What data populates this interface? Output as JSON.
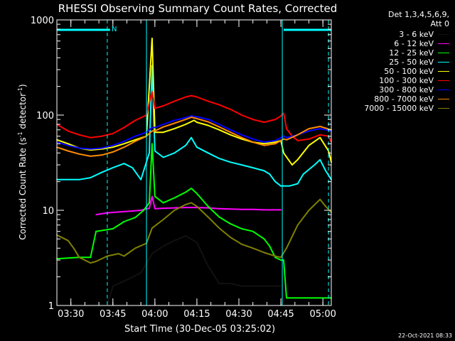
{
  "chart_data": {
    "type": "line",
    "title": "RHESSI Observing Summary Count Rates, Corrected",
    "xlabel": "Start Time (30-Dec-05 03:25:02)",
    "ylabel_main": "Corrected Count Rate (s",
    "ylabel_sup1": "-1",
    "ylabel_mid": " detector",
    "ylabel_sup2": "-1",
    "ylabel_end": ")",
    "yscale": "log",
    "ylim": [
      1,
      1000
    ],
    "xlim_minutes": [
      0,
      98
    ],
    "x_ticks": [
      {
        "label": "03:30",
        "minute": 5
      },
      {
        "label": "03:45",
        "minute": 20
      },
      {
        "label": "04:00",
        "minute": 35
      },
      {
        "label": "04:15",
        "minute": 50
      },
      {
        "label": "04:30",
        "minute": 65
      },
      {
        "label": "04:45",
        "minute": 80
      },
      {
        "label": "05:00",
        "minute": 95
      }
    ],
    "y_ticks": [
      {
        "label": "1",
        "value": 1
      },
      {
        "label": "10",
        "value": 10
      },
      {
        "label": "100",
        "value": 100
      },
      {
        "label": "1000",
        "value": 1000
      }
    ],
    "legend_header": "Det 1,3,4,5,6,9,",
    "legend_att": "Att 0",
    "annotation_n": "N",
    "series": [
      {
        "name": "3 - 6 keV",
        "color": "#000000",
        "points": [
          [
            18,
            1
          ],
          [
            20,
            1.6
          ],
          [
            24,
            1.8
          ],
          [
            30,
            2.2
          ],
          [
            34,
            3.5
          ],
          [
            38,
            4.2
          ],
          [
            42,
            4.8
          ],
          [
            46,
            5.4
          ],
          [
            50,
            4.6
          ],
          [
            54,
            2.6
          ],
          [
            58,
            1.7
          ],
          [
            62,
            1.7
          ],
          [
            66,
            1.6
          ],
          [
            70,
            1.6
          ],
          [
            74,
            1.6
          ],
          [
            78,
            1.6
          ],
          [
            80,
            1.6
          ]
        ]
      },
      {
        "name": "6 - 12 keV",
        "color": "#ff00ff",
        "points": [
          [
            14,
            9
          ],
          [
            18,
            9.4
          ],
          [
            22,
            9.6
          ],
          [
            26,
            9.8
          ],
          [
            30,
            10
          ],
          [
            33,
            10.5
          ],
          [
            34,
            14
          ],
          [
            35,
            10.4
          ],
          [
            38,
            10.5
          ],
          [
            42,
            10.6
          ],
          [
            46,
            10.7
          ],
          [
            50,
            10.7
          ],
          [
            54,
            10.6
          ],
          [
            58,
            10.4
          ],
          [
            62,
            10.3
          ],
          [
            66,
            10.2
          ],
          [
            70,
            10.2
          ],
          [
            74,
            10.1
          ],
          [
            78,
            10.1
          ],
          [
            80,
            10.1
          ]
        ]
      },
      {
        "name": "12 - 25 keV",
        "color": "#00ff00",
        "points": [
          [
            0,
            3.1
          ],
          [
            8,
            3.2
          ],
          [
            12,
            3.2
          ],
          [
            14,
            6
          ],
          [
            20,
            6.4
          ],
          [
            24,
            7.6
          ],
          [
            28,
            8.4
          ],
          [
            31,
            10
          ],
          [
            33,
            12
          ],
          [
            34,
            50
          ],
          [
            35,
            14
          ],
          [
            38,
            12
          ],
          [
            42,
            13.5
          ],
          [
            46,
            15.5
          ],
          [
            48,
            17
          ],
          [
            50,
            15
          ],
          [
            54,
            11
          ],
          [
            58,
            8.5
          ],
          [
            62,
            7.2
          ],
          [
            66,
            6.4
          ],
          [
            70,
            6
          ],
          [
            74,
            5
          ],
          [
            76,
            4.2
          ],
          [
            78,
            3.2
          ],
          [
            80,
            3
          ],
          [
            81,
            3
          ],
          [
            82,
            1.2
          ],
          [
            98,
            1.2
          ]
        ]
      },
      {
        "name": "25 - 50 keV",
        "color": "#00ffff",
        "points": [
          [
            0,
            21
          ],
          [
            4,
            21
          ],
          [
            8,
            21
          ],
          [
            12,
            22
          ],
          [
            16,
            25
          ],
          [
            20,
            28
          ],
          [
            24,
            31
          ],
          [
            27,
            28
          ],
          [
            30,
            21
          ],
          [
            33,
            40
          ],
          [
            34,
            330
          ],
          [
            35,
            42
          ],
          [
            38,
            36
          ],
          [
            42,
            40
          ],
          [
            46,
            48
          ],
          [
            48,
            58
          ],
          [
            50,
            46
          ],
          [
            54,
            40
          ],
          [
            58,
            35
          ],
          [
            62,
            32
          ],
          [
            66,
            30
          ],
          [
            70,
            28
          ],
          [
            74,
            26
          ],
          [
            76,
            24
          ],
          [
            78,
            20
          ],
          [
            80,
            18
          ],
          [
            83,
            18
          ],
          [
            86,
            19
          ],
          [
            88,
            24
          ],
          [
            92,
            30
          ],
          [
            94,
            34
          ],
          [
            96,
            26
          ],
          [
            98,
            21
          ]
        ]
      },
      {
        "name": "50 - 100 keV",
        "color": "#ffff00",
        "points": [
          [
            0,
            55
          ],
          [
            4,
            50
          ],
          [
            8,
            45
          ],
          [
            12,
            43
          ],
          [
            16,
            44
          ],
          [
            20,
            46
          ],
          [
            24,
            50
          ],
          [
            28,
            55
          ],
          [
            32,
            60
          ],
          [
            34,
            640
          ],
          [
            35,
            66
          ],
          [
            38,
            66
          ],
          [
            42,
            72
          ],
          [
            46,
            80
          ],
          [
            49,
            88
          ],
          [
            50,
            84
          ],
          [
            54,
            78
          ],
          [
            58,
            70
          ],
          [
            62,
            62
          ],
          [
            66,
            56
          ],
          [
            70,
            52
          ],
          [
            74,
            50
          ],
          [
            78,
            52
          ],
          [
            80,
            54
          ],
          [
            81,
            40
          ],
          [
            84,
            30
          ],
          [
            86,
            34
          ],
          [
            90,
            48
          ],
          [
            94,
            58
          ],
          [
            97,
            42
          ],
          [
            98,
            32
          ]
        ]
      },
      {
        "name": "100 - 300 keV",
        "color": "#ff0000",
        "points": [
          [
            0,
            80
          ],
          [
            4,
            68
          ],
          [
            8,
            62
          ],
          [
            12,
            58
          ],
          [
            16,
            60
          ],
          [
            20,
            64
          ],
          [
            24,
            74
          ],
          [
            28,
            88
          ],
          [
            32,
            100
          ],
          [
            34,
            175
          ],
          [
            35,
            118
          ],
          [
            38,
            125
          ],
          [
            42,
            140
          ],
          [
            46,
            155
          ],
          [
            48,
            160
          ],
          [
            50,
            155
          ],
          [
            54,
            140
          ],
          [
            58,
            128
          ],
          [
            62,
            115
          ],
          [
            66,
            100
          ],
          [
            70,
            90
          ],
          [
            74,
            84
          ],
          [
            78,
            90
          ],
          [
            80,
            98
          ],
          [
            81,
            105
          ],
          [
            82,
            72
          ],
          [
            84,
            60
          ],
          [
            86,
            54
          ],
          [
            90,
            56
          ],
          [
            94,
            62
          ],
          [
            97,
            60
          ],
          [
            98,
            52
          ]
        ]
      },
      {
        "name": "300 - 800 keV",
        "color": "#0000ff",
        "points": [
          [
            0,
            52
          ],
          [
            4,
            48
          ],
          [
            8,
            45
          ],
          [
            12,
            44
          ],
          [
            16,
            45
          ],
          [
            20,
            48
          ],
          [
            24,
            53
          ],
          [
            28,
            60
          ],
          [
            32,
            66
          ],
          [
            34,
            74
          ],
          [
            35,
            74
          ],
          [
            38,
            80
          ],
          [
            42,
            88
          ],
          [
            46,
            94
          ],
          [
            48,
            98
          ],
          [
            50,
            96
          ],
          [
            54,
            90
          ],
          [
            58,
            80
          ],
          [
            62,
            70
          ],
          [
            66,
            62
          ],
          [
            70,
            56
          ],
          [
            74,
            52
          ],
          [
            78,
            54
          ],
          [
            80,
            58
          ],
          [
            81,
            60
          ],
          [
            82,
            58
          ],
          [
            86,
            62
          ],
          [
            90,
            68
          ],
          [
            94,
            72
          ],
          [
            98,
            68
          ]
        ]
      },
      {
        "name": "800 - 7000 keV",
        "color": "#ff8c00",
        "points": [
          [
            0,
            46
          ],
          [
            4,
            42
          ],
          [
            8,
            39
          ],
          [
            12,
            37
          ],
          [
            16,
            38
          ],
          [
            20,
            41
          ],
          [
            24,
            46
          ],
          [
            28,
            53
          ],
          [
            32,
            60
          ],
          [
            34,
            68
          ],
          [
            35,
            68
          ],
          [
            38,
            75
          ],
          [
            42,
            82
          ],
          [
            46,
            90
          ],
          [
            48,
            95
          ],
          [
            50,
            92
          ],
          [
            54,
            85
          ],
          [
            58,
            75
          ],
          [
            62,
            66
          ],
          [
            66,
            58
          ],
          [
            70,
            52
          ],
          [
            74,
            48
          ],
          [
            78,
            50
          ],
          [
            80,
            54
          ],
          [
            81,
            56
          ],
          [
            82,
            55
          ],
          [
            86,
            62
          ],
          [
            90,
            72
          ],
          [
            94,
            76
          ],
          [
            98,
            70
          ]
        ]
      },
      {
        "name": "7000 - 15000 keV",
        "color": "#808000",
        "points": [
          [
            0,
            5.5
          ],
          [
            4,
            4.8
          ],
          [
            6,
            4.0
          ],
          [
            8,
            3.2
          ],
          [
            12,
            2.8
          ],
          [
            14,
            2.9
          ],
          [
            18,
            3.3
          ],
          [
            22,
            3.5
          ],
          [
            24,
            3.3
          ],
          [
            28,
            4
          ],
          [
            32,
            4.5
          ],
          [
            34,
            6.5
          ],
          [
            38,
            8
          ],
          [
            42,
            10
          ],
          [
            46,
            11.5
          ],
          [
            48,
            12
          ],
          [
            50,
            11
          ],
          [
            54,
            8.5
          ],
          [
            58,
            6.5
          ],
          [
            62,
            5.2
          ],
          [
            66,
            4.4
          ],
          [
            70,
            4
          ],
          [
            74,
            3.6
          ],
          [
            78,
            3.3
          ],
          [
            80,
            3.2
          ],
          [
            82,
            4
          ],
          [
            86,
            7
          ],
          [
            90,
            10
          ],
          [
            94,
            13
          ],
          [
            96,
            11
          ],
          [
            98,
            9.5
          ]
        ]
      }
    ],
    "attenuator_bars": [
      [
        0,
        19
      ],
      [
        81,
        98
      ]
    ],
    "dashed_markers_minutes": [
      18,
      97
    ],
    "solid_markers_minutes": [
      32,
      80.5
    ]
  },
  "footer": {
    "date": "22-Oct-2021 08:33"
  }
}
